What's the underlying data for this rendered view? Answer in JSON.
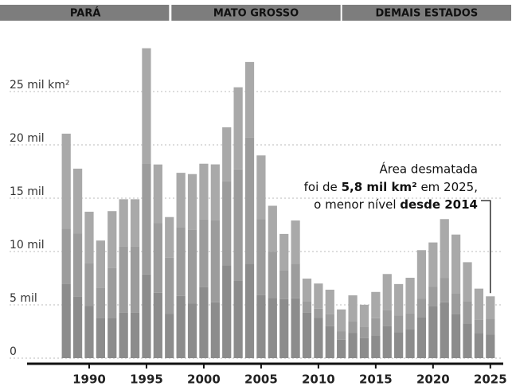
{
  "chart_data": {
    "type": "stacked_bar",
    "x": [
      1988,
      1989,
      1990,
      1991,
      1992,
      1993,
      1994,
      1995,
      1996,
      1997,
      1998,
      1999,
      2000,
      2001,
      2002,
      2003,
      2004,
      2005,
      2006,
      2007,
      2008,
      2009,
      2010,
      2011,
      2012,
      2013,
      2014,
      2015,
      2016,
      2017,
      2018,
      2019,
      2020,
      2021,
      2022,
      2023,
      2024,
      2025
    ],
    "xlim": [
      1987.5,
      2025.5
    ],
    "xticks": [
      1990,
      1995,
      2000,
      2005,
      2010,
      2015,
      2020,
      2025
    ],
    "ylim": [
      0,
      30
    ],
    "yticks": [
      0,
      {
        "value": 5,
        "label": "5 mil"
      },
      {
        "value": 10,
        "label": "10 mil"
      },
      {
        "value": 15,
        "label": "15 mil"
      },
      {
        "value": 20,
        "label": "20 mil"
      },
      {
        "value": 25,
        "label": "25 mil km²"
      }
    ],
    "grid": true,
    "legend": "top",
    "series": [
      {
        "name": "PARÁ",
        "color": "#8c8c8c",
        "values": [
          6.99,
          5.75,
          4.89,
          3.78,
          3.79,
          4.28,
          4.28,
          7.85,
          6.14,
          4.14,
          5.83,
          5.11,
          6.67,
          5.24,
          8.7,
          7.29,
          8.87,
          5.9,
          5.66,
          5.53,
          5.61,
          4.28,
          3.77,
          3.01,
          1.74,
          2.35,
          1.89,
          2.15,
          2.99,
          2.43,
          2.74,
          3.86,
          4.9,
          5.24,
          4.16,
          3.27,
          2.36,
          2.2
        ]
      },
      {
        "name": "MATO GROSSO",
        "color": "#9c9c9c",
        "values": [
          5.14,
          5.96,
          4.02,
          2.84,
          4.67,
          6.22,
          6.22,
          10.39,
          6.54,
          5.27,
          6.47,
          6.96,
          6.37,
          7.7,
          7.89,
          10.41,
          11.81,
          7.15,
          4.33,
          2.68,
          3.26,
          1.05,
          0.87,
          1.12,
          0.76,
          1.14,
          1.08,
          1.6,
          1.49,
          1.56,
          1.49,
          1.7,
          1.78,
          2.26,
          1.93,
          2.09,
          1.25,
          1.5
        ]
      },
      {
        "name": "DEMAIS ESTADOS",
        "color": "#a9a9a9",
        "values": [
          8.92,
          6.06,
          4.82,
          4.41,
          5.33,
          4.4,
          4.4,
          10.82,
          5.48,
          3.82,
          5.08,
          5.19,
          5.19,
          5.23,
          5.06,
          7.7,
          7.09,
          5.96,
          4.3,
          3.44,
          4.04,
          2.13,
          2.36,
          2.29,
          2.07,
          2.4,
          2.04,
          2.46,
          3.41,
          2.96,
          3.31,
          4.57,
          4.17,
          5.54,
          5.5,
          3.64,
          2.91,
          2.1
        ]
      }
    ],
    "annotation": [
      "Área desmatada",
      [
        "foi de ",
        "5,8 mil km²",
        " em 2025,"
      ],
      [
        "o menor nível ",
        "desde 2014"
      ]
    ]
  }
}
